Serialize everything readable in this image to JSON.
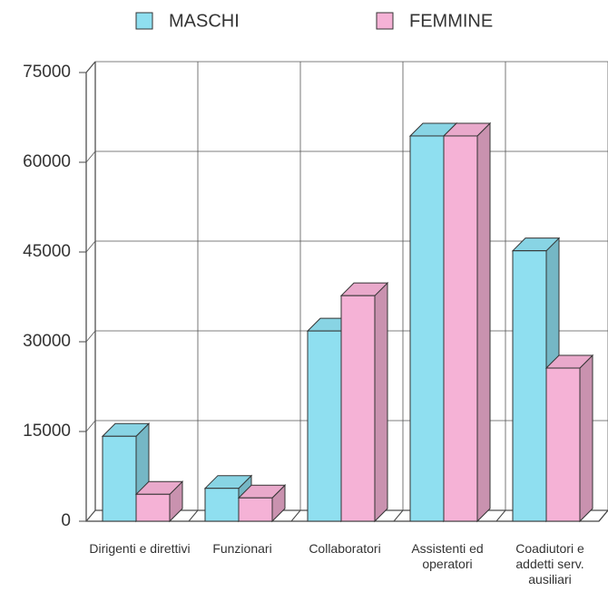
{
  "chart_data": {
    "type": "bar3d",
    "categories": [
      "Dirigenti e direttivi",
      "Funzionari",
      "Collaboratori",
      "Assistenti ed operatori",
      "Coadiutori e addetti serv. ausiliari"
    ],
    "series": [
      {
        "name": "MASCHI",
        "color": "#8fdff0",
        "values": [
          14200,
          5500,
          31800,
          64400,
          45200
        ]
      },
      {
        "name": "FEMMINE",
        "color": "#f5b2d6",
        "values": [
          4500,
          3900,
          37700,
          64400,
          25600
        ]
      }
    ],
    "ylim": [
      0,
      75000
    ],
    "yticks": [
      0,
      15000,
      30000,
      45000,
      60000,
      75000
    ],
    "grid": true,
    "legend": "top"
  }
}
